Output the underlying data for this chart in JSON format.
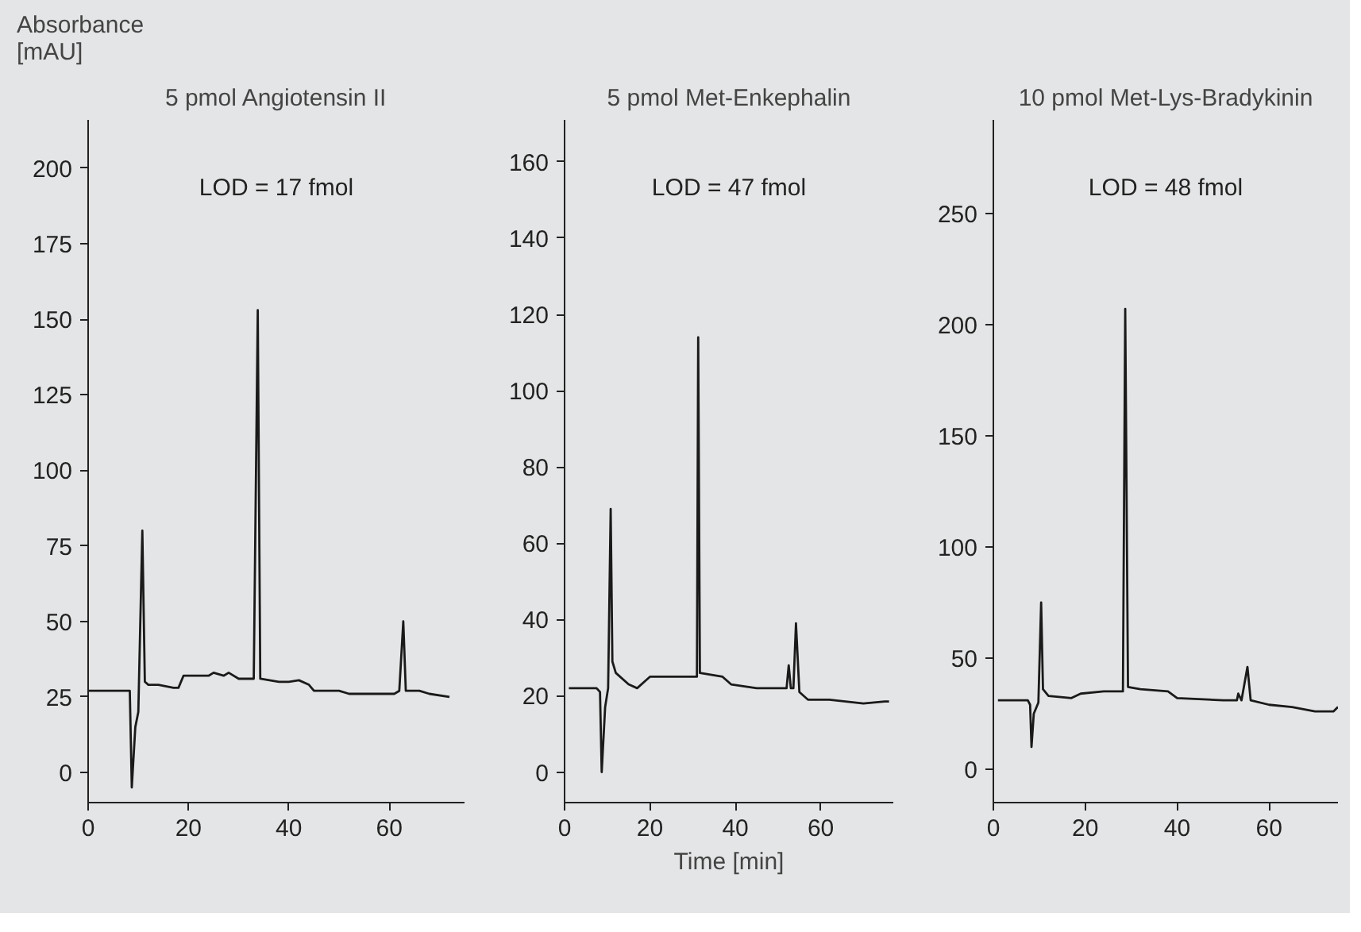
{
  "chart_data": [
    {
      "type": "line",
      "title": "5 pmol Angiotensin II",
      "ylabel": "Absorbance [mAU]",
      "annotations": [
        "LOD = 17 fmol"
      ],
      "xlim": [
        0,
        75
      ],
      "ylim": [
        -10,
        216
      ],
      "xticks": [
        0,
        20,
        40,
        60
      ],
      "yticks": [
        0,
        25,
        50,
        75,
        100,
        125,
        150,
        175,
        200
      ],
      "x": [
        0,
        8.3,
        8.7,
        9.4,
        10,
        10.8,
        11.3,
        12,
        14,
        17,
        18,
        19,
        22,
        24,
        25,
        27,
        28,
        30,
        33,
        33.8,
        34.3,
        38,
        40,
        42,
        44,
        45,
        48,
        50,
        52,
        55,
        58,
        61,
        62,
        62.8,
        63.3,
        66,
        68,
        72
      ],
      "series": [
        {
          "color": "#1a1a1a",
          "values": [
            27,
            27,
            -5,
            15,
            20,
            80,
            30,
            29,
            29,
            28,
            28,
            32,
            32,
            32,
            33,
            32,
            33,
            31,
            31,
            153,
            31,
            30,
            30,
            30.5,
            29,
            27,
            27,
            27,
            26,
            26,
            26,
            26,
            27,
            50,
            27,
            27,
            26,
            25
          ]
        }
      ]
    },
    {
      "type": "line",
      "title": "5 pmol Met-Enkephalin",
      "xlabel": "Time [min]",
      "annotations": [
        "LOD = 47 fmol"
      ],
      "xlim": [
        0,
        77
      ],
      "ylim": [
        -8,
        171
      ],
      "xticks": [
        0,
        20,
        40,
        60
      ],
      "yticks": [
        0,
        20,
        40,
        60,
        80,
        100,
        120,
        140,
        160
      ],
      "x": [
        1,
        7.5,
        8.3,
        8.7,
        9.5,
        10.2,
        10.8,
        11.2,
        12,
        15,
        17,
        19,
        20,
        30,
        31,
        31.3,
        31.7,
        37,
        39,
        45,
        50,
        52,
        52.5,
        53,
        53.6,
        54.2,
        55,
        57,
        62,
        70,
        75,
        76
      ],
      "series": [
        {
          "color": "#1a1a1a",
          "values": [
            22,
            22,
            21,
            0,
            17,
            22,
            69,
            29,
            26,
            23,
            22,
            24,
            25,
            25,
            25,
            114,
            26,
            25,
            23,
            22,
            22,
            22,
            28,
            22,
            22,
            39,
            21,
            19,
            19,
            18,
            18.5,
            18.5
          ]
        }
      ]
    },
    {
      "type": "line",
      "title": "10 pmol Met-Lys-Bradykinin",
      "annotations": [
        "LOD = 48 fmol"
      ],
      "xlim": [
        0,
        75
      ],
      "ylim": [
        -15,
        292
      ],
      "xticks": [
        0,
        20,
        40,
        60
      ],
      "yticks": [
        0,
        50,
        100,
        150,
        200,
        250
      ],
      "x": [
        1,
        7.5,
        8,
        8.3,
        8.8,
        9.8,
        10.4,
        10.8,
        12,
        17,
        19,
        24,
        28.2,
        28.7,
        29.3,
        32,
        38,
        40,
        50,
        53,
        53.3,
        54,
        55.3,
        56,
        60,
        65,
        70,
        74,
        75
      ],
      "series": [
        {
          "color": "#1a1a1a",
          "values": [
            31,
            31,
            29,
            10,
            25,
            30,
            75,
            36,
            33,
            32,
            34,
            35,
            35,
            207,
            37,
            36,
            35,
            32,
            31,
            31,
            34,
            31,
            46,
            31,
            29,
            28,
            26,
            26,
            28
          ]
        }
      ]
    }
  ]
}
